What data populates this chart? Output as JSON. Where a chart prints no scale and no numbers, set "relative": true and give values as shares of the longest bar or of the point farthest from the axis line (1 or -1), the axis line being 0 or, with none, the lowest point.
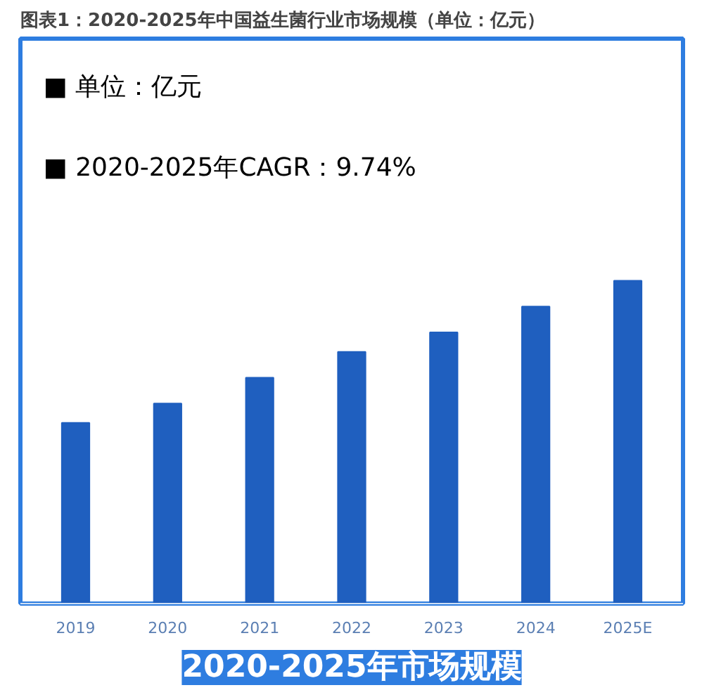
{
  "chart_data": {
    "type": "bar",
    "title": "图表1：2020-2025年中国益生菌行业市场规模（单位：亿元）",
    "categories": [
      "2019",
      "2020",
      "2021",
      "2022",
      "2023",
      "2024",
      "2025E"
    ],
    "values": [
      0.56,
      0.62,
      0.7,
      0.78,
      0.84,
      0.92,
      1.0
    ],
    "color": "#1f5fbf",
    "relative": true,
    "grid": false,
    "xlabel": "2020-2025年市场规模",
    "annotations": [
      "■  单位：亿元",
      "■  2020-2025年CAGR：9.74%"
    ]
  }
}
